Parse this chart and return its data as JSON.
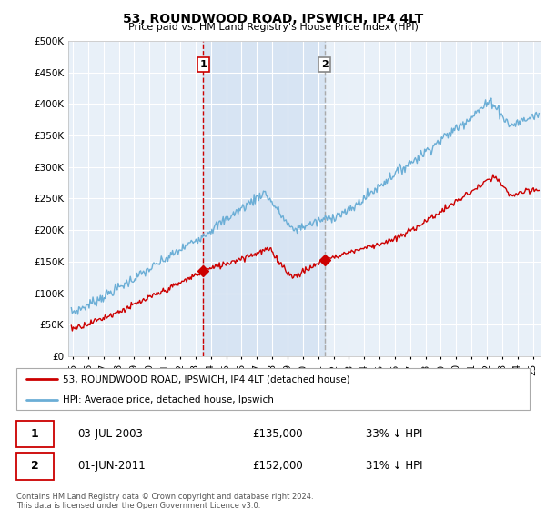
{
  "title": "53, ROUNDWOOD ROAD, IPSWICH, IP4 4LT",
  "subtitle": "Price paid vs. HM Land Registry's House Price Index (HPI)",
  "ylim": [
    0,
    500000
  ],
  "yticks": [
    0,
    50000,
    100000,
    150000,
    200000,
    250000,
    300000,
    350000,
    400000,
    450000,
    500000
  ],
  "fig_bg": "#ffffff",
  "plot_bg_color": "#e8f0f8",
  "grid_color": "#ffffff",
  "hpi_color": "#6baed6",
  "price_color": "#cc0000",
  "sale1_vline_color": "#cc0000",
  "sale2_vline_color": "#aaaaaa",
  "shade_color": "#ccddf0",
  "sale1": {
    "date_num": 2003.5,
    "price": 135000,
    "label": "1",
    "date_str": "03-JUL-2003",
    "pct": "33% ↓ HPI"
  },
  "sale2": {
    "date_num": 2011.42,
    "price": 152000,
    "label": "2",
    "date_str": "01-JUN-2011",
    "pct": "31% ↓ HPI"
  },
  "legend_label_price": "53, ROUNDWOOD ROAD, IPSWICH, IP4 4LT (detached house)",
  "legend_label_hpi": "HPI: Average price, detached house, Ipswich",
  "footnote": "Contains HM Land Registry data © Crown copyright and database right 2024.\nThis data is licensed under the Open Government Licence v3.0.",
  "xlim_start": 1994.7,
  "xlim_end": 2025.5,
  "xticks": [
    1995,
    1996,
    1997,
    1998,
    1999,
    2000,
    2001,
    2002,
    2003,
    2004,
    2005,
    2006,
    2007,
    2008,
    2009,
    2010,
    2011,
    2012,
    2013,
    2014,
    2015,
    2016,
    2017,
    2018,
    2019,
    2020,
    2021,
    2022,
    2023,
    2024,
    2025
  ]
}
